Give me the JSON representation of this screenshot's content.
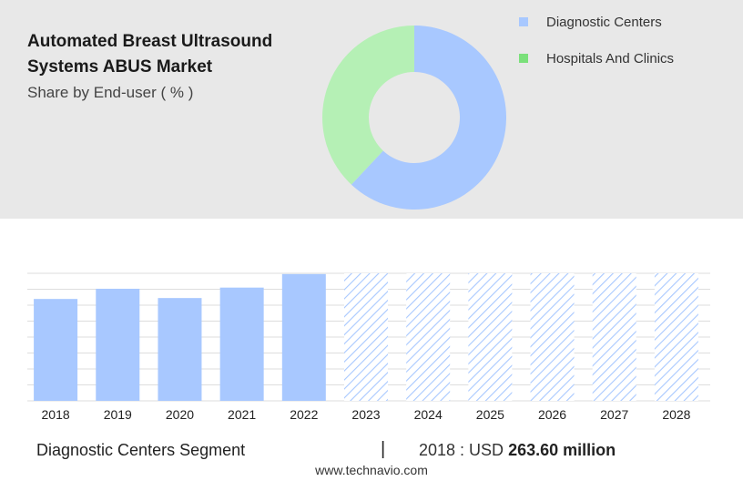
{
  "header": {
    "title": "Automated Breast Ultrasound Systems ABUS Market",
    "subtitle": "Share by End-user ( % )"
  },
  "colors": {
    "diagnostic": "#a8c8ff",
    "hospitals": "#b5f0b5",
    "hospitals_legend": "#7ae07a"
  },
  "legend": {
    "items": [
      {
        "label": "Diagnostic Centers"
      },
      {
        "label": "Hospitals And Clinics"
      }
    ]
  },
  "chart_data": [
    {
      "type": "pie",
      "variant": "donut",
      "slices": [
        {
          "label": "Diagnostic Centers",
          "value": 62
        },
        {
          "label": "Hospitals And Clinics",
          "value": 38
        }
      ]
    },
    {
      "type": "bar",
      "categories": [
        "2018",
        "2019",
        "2020",
        "2021",
        "2022",
        "2023",
        "2024",
        "2025",
        "2026",
        "2027",
        "2028"
      ],
      "values": [
        263.6,
        290,
        266,
        293,
        328,
        null,
        null,
        null,
        null,
        null,
        null
      ],
      "forecast_start_index": 5,
      "ylim": [
        0,
        330
      ],
      "grid": true
    }
  ],
  "footer": {
    "segment": "Diagnostic Centers Segment",
    "divider": "|",
    "stat_prefix": "2018 : USD",
    "stat_value": "263.60 million",
    "url": "www.technavio.com"
  }
}
